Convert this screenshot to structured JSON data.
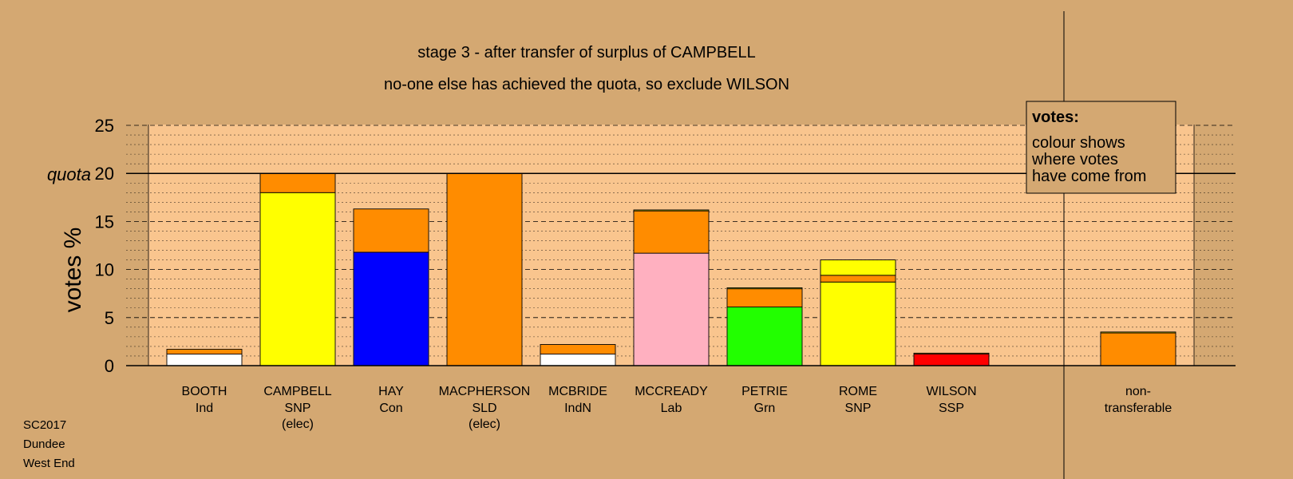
{
  "chart_data": {
    "type": "bar",
    "title": "stage 3 - after transfer of surplus of CAMPBELL",
    "subtitle": "no-one else has achieved the quota, so exclude WILSON",
    "ylabel": "votes %",
    "quota_label": "quota",
    "quota": 20,
    "ylim": [
      0,
      25
    ],
    "yticks": [
      "0",
      "5",
      "10",
      "15",
      "20",
      "25"
    ],
    "grid": "dashed every 5, dotted every 1",
    "colors": {
      "background": "#d4a872",
      "plot_area": "#f9c58e",
      "white": "#ffffff",
      "orange": "#ff8c00",
      "yellow": "#ffff00",
      "blue": "#0000ff",
      "pink": "#ffb0c0",
      "green": "#22ff00",
      "red": "#ff0000"
    },
    "candidates": [
      {
        "name": "BOOTH",
        "party": "Ind",
        "status": "",
        "segments": [
          {
            "value": 1.2,
            "color": "#ffffff"
          },
          {
            "value": 0.5,
            "color": "#ff8c00"
          }
        ]
      },
      {
        "name": "CAMPBELL",
        "party": "SNP",
        "status": "(elec)",
        "segments": [
          {
            "value": 18.0,
            "color": "#ffff00"
          },
          {
            "value": 2.0,
            "color": "#ff8c00"
          }
        ]
      },
      {
        "name": "HAY",
        "party": "Con",
        "status": "",
        "segments": [
          {
            "value": 11.8,
            "color": "#0000ff"
          },
          {
            "value": 4.5,
            "color": "#ff8c00"
          }
        ]
      },
      {
        "name": "MACPHERSON",
        "party": "SLD",
        "status": "(elec)",
        "segments": [
          {
            "value": 20.0,
            "color": "#ff8c00"
          }
        ]
      },
      {
        "name": "MCBRIDE",
        "party": "IndN",
        "status": "",
        "segments": [
          {
            "value": 1.2,
            "color": "#ffffff"
          },
          {
            "value": 1.0,
            "color": "#ff8c00"
          }
        ]
      },
      {
        "name": "MCCREADY",
        "party": "Lab",
        "status": "",
        "segments": [
          {
            "value": 11.7,
            "color": "#ffb0c0"
          },
          {
            "value": 4.4,
            "color": "#ff8c00"
          },
          {
            "value": 0.1,
            "color": "#ffff00"
          }
        ]
      },
      {
        "name": "PETRIE",
        "party": "Grn",
        "status": "",
        "segments": [
          {
            "value": 6.1,
            "color": "#22ff00"
          },
          {
            "value": 1.9,
            "color": "#ff8c00"
          },
          {
            "value": 0.1,
            "color": "#ffff00"
          }
        ]
      },
      {
        "name": "ROME",
        "party": "SNP",
        "status": "",
        "segments": [
          {
            "value": 8.7,
            "color": "#ffff00"
          },
          {
            "value": 0.7,
            "color": "#ff8c00"
          },
          {
            "value": 1.6,
            "color": "#ffff00"
          }
        ]
      },
      {
        "name": "WILSON",
        "party": "SSP",
        "status": "",
        "segments": [
          {
            "value": 1.2,
            "color": "#ff0000"
          },
          {
            "value": 0.1,
            "color": "#ff8c00"
          }
        ]
      }
    ],
    "non_transferable": {
      "label_line1": "non-",
      "label_line2": "transferable",
      "segments": [
        {
          "value": 3.4,
          "color": "#ff8c00"
        },
        {
          "value": 0.1,
          "color": "#ffff00"
        }
      ]
    },
    "legend": {
      "title": "votes:",
      "lines": [
        "colour shows",
        "where votes",
        "have come from"
      ],
      "placement": "top-right"
    }
  },
  "footer": {
    "lines": [
      "SC2017",
      "Dundee",
      "West End"
    ]
  }
}
